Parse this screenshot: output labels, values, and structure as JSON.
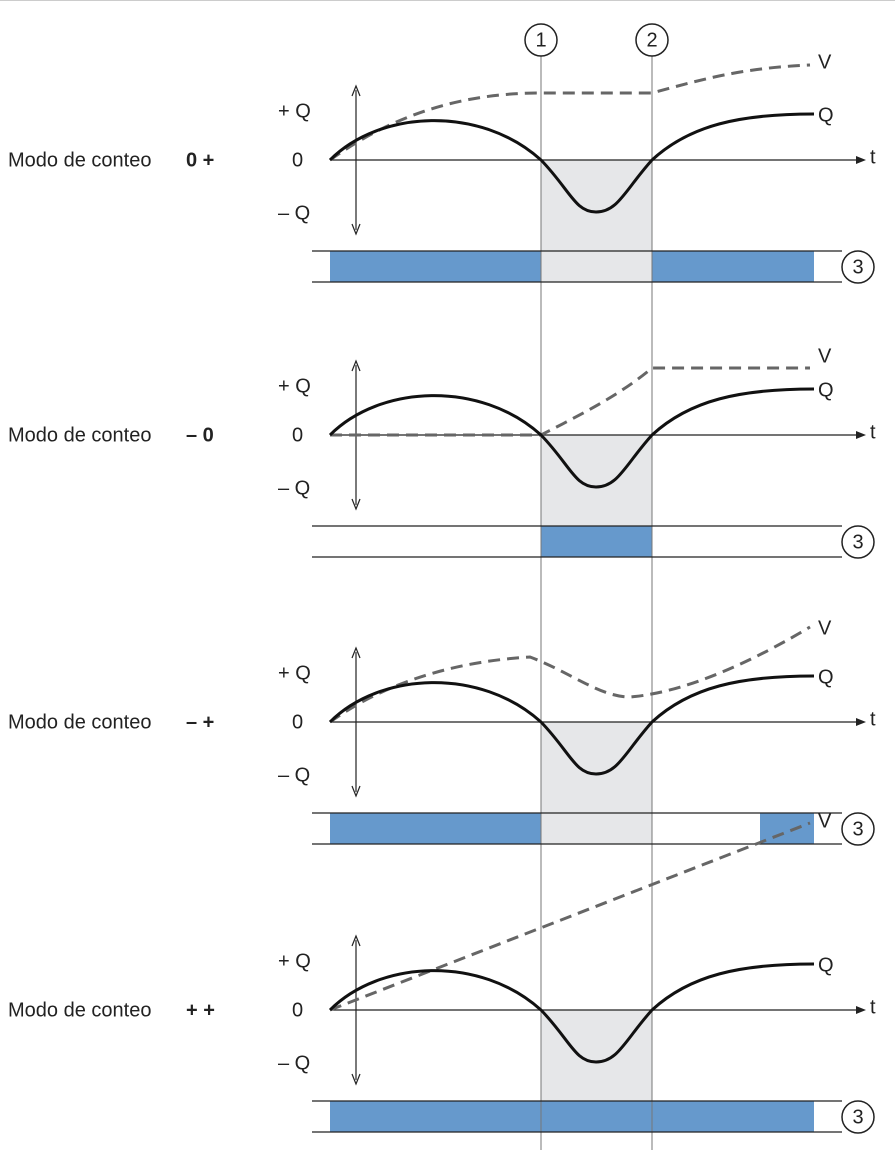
{
  "markers": [
    "1",
    "2"
  ],
  "panels": [
    {
      "label": "Modo de conteo",
      "mode": "0 +",
      "plus_q": "+ Q",
      "zero": "0",
      "minus_q": "– Q",
      "t": "t",
      "v": "V",
      "q": "Q",
      "badge": "3"
    },
    {
      "label": "Modo de conteo",
      "mode": "– 0",
      "plus_q": "+ Q",
      "zero": "0",
      "minus_q": "– Q",
      "t": "t",
      "v": "V",
      "q": "Q",
      "badge": "3"
    },
    {
      "label": "Modo de conteo",
      "mode": "– +",
      "plus_q": "+ Q",
      "zero": "0",
      "minus_q": "– Q",
      "t": "t",
      "v": "V",
      "q": "Q",
      "badge": "3"
    },
    {
      "label": "Modo de conteo",
      "mode": "+ +",
      "plus_q": "+ Q",
      "zero": "0",
      "minus_q": "– Q",
      "t": "t",
      "v": "V",
      "q": "Q",
      "badge": "3"
    }
  ]
}
